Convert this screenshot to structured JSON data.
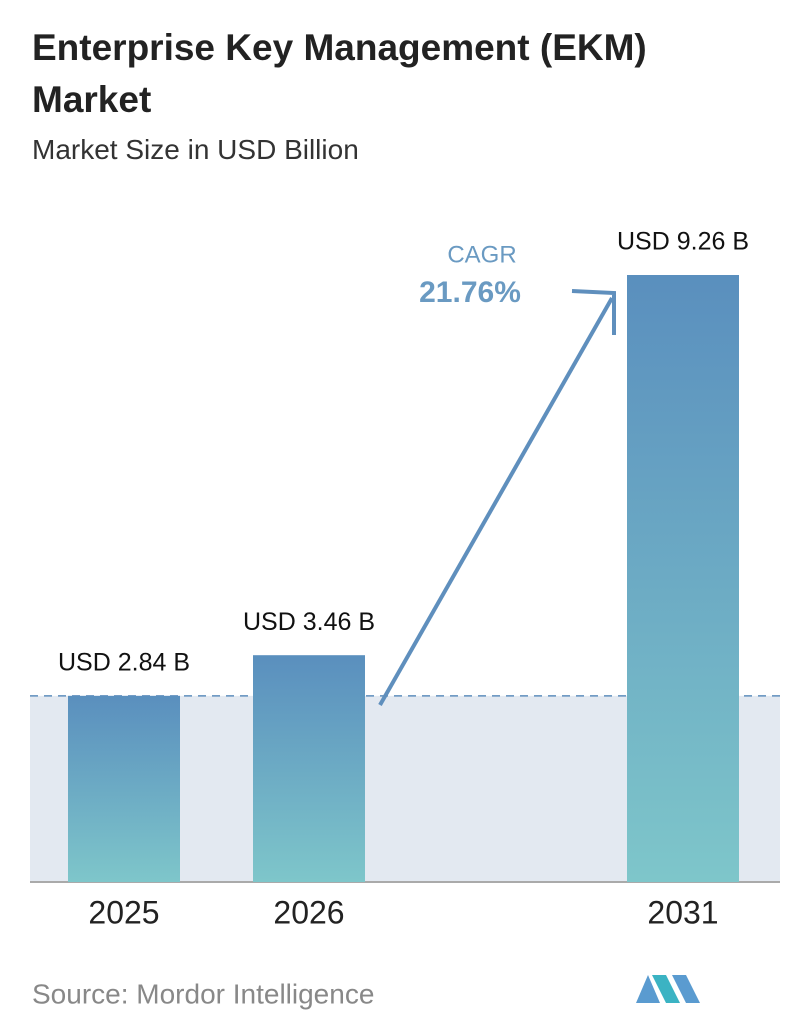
{
  "chart_data": {
    "type": "bar",
    "title": "Enterprise Key Management (EKM) Market",
    "subtitle": "Market Size in USD Billion",
    "categories": [
      "2025",
      "2026",
      "2031"
    ],
    "values": [
      2.84,
      3.46,
      9.26
    ],
    "value_labels": [
      "USD 2.84 B",
      "USD 3.46 B",
      "USD 9.26 B"
    ],
    "annotations": [
      "CAGR",
      "21.76%"
    ],
    "source": "Source:  Mordor Intelligence"
  }
}
